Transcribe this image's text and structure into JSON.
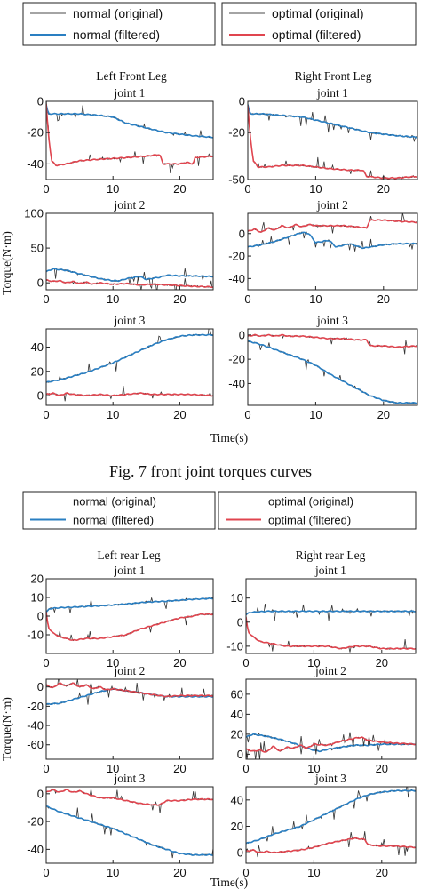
{
  "figures": [
    {
      "caption": "Fig. 7 front joint torques curves",
      "xlabel": "Time(s)",
      "ylabel": "Torque(N·m)",
      "legends": [
        [
          {
            "label": "normal (original)",
            "color": "#4a4a4a"
          },
          {
            "label": "normal (filtered)",
            "color": "#2a7fc2"
          }
        ],
        [
          {
            "label": "optimal (original)",
            "color": "#4a4a4a"
          },
          {
            "label": "optimal (filtered)",
            "color": "#e0454f"
          }
        ]
      ],
      "column_titles": [
        "Left Front Leg",
        "Right Front Leg"
      ]
    },
    {
      "caption": "",
      "xlabel": "Time(s)",
      "ylabel": "Torque(N·m)",
      "legends": [
        [
          {
            "label": "normal (original)",
            "color": "#4a4a4a"
          },
          {
            "label": "normal (filtered)",
            "color": "#2a7fc2"
          }
        ],
        [
          {
            "label": "optimal (original)",
            "color": "#4a4a4a"
          },
          {
            "label": "optimal (filtered)",
            "color": "#e0454f"
          }
        ]
      ],
      "column_titles": [
        "Left rear Leg",
        "Right rear Leg"
      ]
    }
  ],
  "chart_data": [
    {
      "type": "line",
      "title": "joint 1",
      "xlim": [
        0,
        25
      ],
      "ylim": [
        -50,
        0
      ],
      "xticks": [
        0,
        10,
        20
      ],
      "yticks": [
        0,
        -20,
        -40
      ],
      "series": [
        {
          "name": "normal (filtered)",
          "color": "#2a7fc2",
          "x": [
            0,
            0.3,
            2,
            5,
            8,
            10,
            12,
            14,
            16,
            18,
            20,
            22,
            25
          ],
          "y": [
            -2,
            -8,
            -8,
            -8,
            -9,
            -10,
            -14,
            -16,
            -18,
            -20,
            -21,
            -22,
            -23
          ]
        },
        {
          "name": "optimal (filtered)",
          "color": "#e0454f",
          "x": [
            0,
            0.3,
            0.8,
            1.5,
            3,
            5,
            8,
            12,
            15,
            17,
            17.5,
            20,
            21,
            22,
            22.3,
            25
          ],
          "y": [
            -2,
            -20,
            -38,
            -41,
            -40,
            -38,
            -37,
            -36,
            -35,
            -34,
            -40,
            -40,
            -39,
            -40,
            -36,
            -35
          ]
        }
      ]
    },
    {
      "type": "line",
      "title": "joint 1",
      "xlim": [
        0,
        25
      ],
      "ylim": [
        -50,
        0
      ],
      "xticks": [
        0,
        10,
        20
      ],
      "yticks": [
        0,
        -20,
        -50
      ],
      "series": [
        {
          "name": "normal (filtered)",
          "color": "#2a7fc2",
          "x": [
            0,
            0.3,
            2,
            5,
            8,
            10,
            12,
            14,
            16,
            18,
            20,
            22,
            25
          ],
          "y": [
            -2,
            -8,
            -8,
            -9,
            -10,
            -12,
            -14,
            -16,
            -18,
            -20,
            -21,
            -22,
            -23
          ]
        },
        {
          "name": "optimal (filtered)",
          "color": "#e0454f",
          "x": [
            0,
            0.3,
            0.8,
            1.5,
            3,
            5,
            8,
            10,
            12,
            15,
            17,
            17.5,
            20,
            22,
            25
          ],
          "y": [
            -3,
            -20,
            -38,
            -42,
            -42,
            -41,
            -41,
            -42,
            -43,
            -44,
            -44,
            -48,
            -49,
            -49,
            -48
          ]
        }
      ]
    },
    {
      "type": "line",
      "title": "joint 2",
      "xlim": [
        0,
        25
      ],
      "ylim": [
        -10,
        100
      ],
      "xticks": [
        0,
        10,
        20
      ],
      "yticks": [
        0,
        50,
        100
      ],
      "series": [
        {
          "name": "normal (filtered)",
          "color": "#2a7fc2",
          "x": [
            0,
            1,
            3,
            5,
            8,
            10,
            11,
            12,
            14,
            15,
            17,
            18,
            20,
            22,
            25
          ],
          "y": [
            16,
            20,
            18,
            13,
            6,
            3,
            3,
            6,
            9,
            5,
            8,
            11,
            10,
            10,
            9
          ]
        },
        {
          "name": "optimal (filtered)",
          "color": "#e0454f",
          "x": [
            0,
            1,
            2,
            3,
            4,
            5,
            6,
            7,
            8,
            10,
            12,
            14,
            16,
            18,
            20,
            22,
            25
          ],
          "y": [
            4,
            2,
            3,
            0,
            2,
            -1,
            1,
            -2,
            0,
            -2,
            -1,
            -3,
            -2,
            -3,
            -4,
            -5,
            -6
          ]
        }
      ]
    },
    {
      "type": "line",
      "title": "joint 2",
      "xlim": [
        0,
        25
      ],
      "ylim": [
        -50,
        18
      ],
      "xticks": [
        0,
        10,
        20
      ],
      "yticks": [
        0,
        -20,
        -40
      ],
      "series": [
        {
          "name": "normal (filtered)",
          "color": "#2a7fc2",
          "x": [
            0,
            2,
            4,
            6,
            8,
            9,
            10,
            12,
            13,
            15,
            17,
            18,
            20,
            22,
            25
          ],
          "y": [
            -12,
            -10,
            -7,
            -3,
            1,
            0,
            -8,
            -6,
            -12,
            -9,
            -13,
            -12,
            -10,
            -9,
            -9
          ]
        },
        {
          "name": "optimal (filtered)",
          "color": "#e0454f",
          "x": [
            0,
            1,
            2,
            3,
            4,
            5,
            6,
            7,
            8,
            9,
            10,
            12,
            14,
            16,
            17.5,
            18,
            20,
            22,
            25
          ],
          "y": [
            2,
            4,
            1,
            5,
            3,
            7,
            5,
            8,
            6,
            8,
            7,
            7,
            7,
            6,
            5,
            12,
            12,
            11,
            10
          ]
        }
      ]
    },
    {
      "type": "line",
      "title": "joint 3",
      "xlim": [
        0,
        25
      ],
      "ylim": [
        -8,
        55
      ],
      "xticks": [
        0,
        10,
        20
      ],
      "yticks": [
        0,
        20,
        40
      ],
      "series": [
        {
          "name": "normal (filtered)",
          "color": "#2a7fc2",
          "x": [
            0,
            2,
            4,
            6,
            8,
            10,
            12,
            14,
            16,
            18,
            20,
            22,
            25
          ],
          "y": [
            11,
            13,
            16,
            19,
            23,
            27,
            32,
            37,
            42,
            46,
            49,
            50,
            50
          ]
        },
        {
          "name": "optimal (filtered)",
          "color": "#e0454f",
          "x": [
            0,
            1,
            2,
            3,
            4,
            6,
            8,
            10,
            12,
            14,
            16,
            18,
            20,
            22,
            25
          ],
          "y": [
            1,
            2,
            0,
            2,
            1,
            0,
            1,
            0,
            1,
            2,
            1,
            1,
            1,
            1,
            0
          ]
        }
      ]
    },
    {
      "type": "line",
      "title": "joint 3",
      "xlim": [
        0,
        25
      ],
      "ylim": [
        -58,
        5
      ],
      "xticks": [
        0,
        10,
        20
      ],
      "yticks": [
        0,
        -20,
        -40
      ],
      "series": [
        {
          "name": "normal (filtered)",
          "color": "#2a7fc2",
          "x": [
            0,
            2,
            4,
            6,
            8,
            10,
            12,
            14,
            16,
            18,
            20,
            22,
            25
          ],
          "y": [
            -5,
            -8,
            -12,
            -16,
            -20,
            -25,
            -32,
            -38,
            -44,
            -50,
            -54,
            -56,
            -56
          ]
        },
        {
          "name": "optimal (filtered)",
          "color": "#e0454f",
          "x": [
            0,
            1,
            2,
            3,
            4,
            5,
            6,
            8,
            10,
            12,
            14,
            16,
            17.5,
            18,
            20,
            22,
            25
          ],
          "y": [
            -1,
            0,
            -1,
            0,
            -1,
            0,
            -1,
            -1,
            -2,
            -3,
            -3,
            -4,
            -4,
            -9,
            -9,
            -10,
            -9
          ]
        }
      ]
    },
    {
      "type": "line",
      "title": "joint 1",
      "xlim": [
        0,
        25
      ],
      "ylim": [
        -20,
        20
      ],
      "xticks": [
        0,
        10,
        20
      ],
      "yticks": [
        20,
        10,
        0,
        -10
      ],
      "series": [
        {
          "name": "normal (filtered)",
          "color": "#2a7fc2",
          "x": [
            0,
            0.5,
            2,
            5,
            8,
            10,
            12,
            15,
            18,
            20,
            22,
            25
          ],
          "y": [
            2,
            4,
            4.5,
            5,
            5.5,
            6,
            6.5,
            7.5,
            8,
            8.5,
            9,
            9.5
          ]
        },
        {
          "name": "optimal (filtered)",
          "color": "#e0454f",
          "x": [
            0,
            0.3,
            1,
            2,
            4,
            6,
            8,
            10,
            12,
            14,
            16,
            18,
            20,
            22,
            23,
            25
          ],
          "y": [
            2,
            -6,
            -9,
            -11,
            -13,
            -12,
            -12,
            -11,
            -10,
            -7,
            -5,
            -3,
            -1,
            0,
            1,
            1
          ]
        }
      ]
    },
    {
      "type": "line",
      "title": "joint 1",
      "xlim": [
        0,
        25
      ],
      "ylim": [
        -13,
        18
      ],
      "xticks": [
        0,
        10,
        20
      ],
      "yticks": [
        10,
        0,
        -10
      ],
      "series": [
        {
          "name": "normal (filtered)",
          "color": "#2a7fc2",
          "x": [
            0,
            0.5,
            3,
            6,
            10,
            14,
            18,
            22,
            25
          ],
          "y": [
            3,
            4,
            4.5,
            4.5,
            4.5,
            4.5,
            4.5,
            4.5,
            4.5
          ]
        },
        {
          "name": "optimal (filtered)",
          "color": "#e0454f",
          "x": [
            0,
            0.3,
            1,
            2,
            4,
            6,
            8,
            10,
            12,
            14,
            16,
            18,
            20,
            22,
            25
          ],
          "y": [
            2,
            -4,
            -6,
            -8,
            -9,
            -10,
            -10,
            -10,
            -10,
            -11,
            -10,
            -10,
            -11,
            -11,
            -11
          ]
        }
      ]
    },
    {
      "type": "line",
      "title": "joint 2",
      "xlim": [
        0,
        25
      ],
      "ylim": [
        -75,
        8
      ],
      "xticks": [
        0,
        10,
        20
      ],
      "yticks": [
        0,
        -20,
        -40,
        -60
      ],
      "series": [
        {
          "name": "normal (filtered)",
          "color": "#2a7fc2",
          "x": [
            0,
            2,
            4,
            6,
            8,
            10,
            12,
            14,
            16,
            18,
            20,
            22,
            25
          ],
          "y": [
            -18,
            -17,
            -13,
            -9,
            -5,
            -2,
            -4,
            -6,
            -8,
            -10,
            -10,
            -10,
            -10
          ]
        },
        {
          "name": "optimal (filtered)",
          "color": "#e0454f",
          "x": [
            0,
            1,
            2,
            3,
            4,
            5,
            6,
            7,
            8,
            9,
            10,
            12,
            14,
            16,
            18,
            20,
            22,
            25
          ],
          "y": [
            2,
            -1,
            4,
            1,
            4,
            0,
            2,
            -2,
            0,
            -3,
            -2,
            -4,
            -6,
            -8,
            -10,
            -9,
            -9,
            -9
          ]
        }
      ]
    },
    {
      "type": "line",
      "title": "joint 2",
      "xlim": [
        0,
        25
      ],
      "ylim": [
        -5,
        75
      ],
      "xticks": [
        0,
        10,
        20
      ],
      "yticks": [
        0,
        20,
        40,
        60
      ],
      "series": [
        {
          "name": "normal (filtered)",
          "color": "#2a7fc2",
          "x": [
            0,
            1,
            3,
            5,
            7,
            9,
            10,
            11,
            12,
            14,
            16,
            18,
            20,
            22,
            25
          ],
          "y": [
            17,
            20,
            18,
            15,
            11,
            6,
            4,
            3,
            5,
            7,
            9,
            9,
            10,
            10,
            10
          ]
        },
        {
          "name": "optimal (filtered)",
          "color": "#e0454f",
          "x": [
            0,
            1,
            2,
            3,
            4,
            5,
            6,
            7,
            8,
            9,
            10,
            12,
            14,
            16,
            17,
            18,
            20,
            22,
            25
          ],
          "y": [
            5,
            3,
            4,
            2,
            8,
            3,
            7,
            6,
            9,
            6,
            10,
            9,
            13,
            16,
            17,
            14,
            12,
            11,
            10
          ]
        }
      ]
    },
    {
      "type": "line",
      "title": "joint 3",
      "xlim": [
        0,
        25
      ],
      "ylim": [
        -50,
        5
      ],
      "xticks": [
        0,
        10,
        20
      ],
      "yticks": [
        0,
        -20,
        -40
      ],
      "series": [
        {
          "name": "normal (filtered)",
          "color": "#2a7fc2",
          "x": [
            0,
            2,
            4,
            6,
            8,
            10,
            12,
            14,
            16,
            18,
            20,
            22,
            25
          ],
          "y": [
            -9,
            -13,
            -16,
            -19,
            -22,
            -25,
            -29,
            -33,
            -37,
            -40,
            -43,
            -44,
            -44
          ]
        },
        {
          "name": "optimal (filtered)",
          "color": "#e0454f",
          "x": [
            0,
            1,
            2,
            3,
            4,
            5,
            6,
            8,
            10,
            12,
            14,
            16,
            17,
            18,
            20,
            22,
            25
          ],
          "y": [
            1,
            3,
            1,
            3,
            1,
            2,
            0,
            -3,
            -3,
            -5,
            -7,
            -8,
            -8,
            -5,
            -5,
            -4,
            -4
          ]
        }
      ]
    },
    {
      "type": "line",
      "title": "joint 3",
      "xlim": [
        0,
        25
      ],
      "ylim": [
        -8,
        50
      ],
      "xticks": [
        0,
        10,
        20
      ],
      "yticks": [
        0,
        20,
        40
      ],
      "series": [
        {
          "name": "normal (filtered)",
          "color": "#2a7fc2",
          "x": [
            0,
            2,
            4,
            6,
            8,
            10,
            12,
            14,
            16,
            18,
            20,
            22,
            25
          ],
          "y": [
            7,
            10,
            14,
            17,
            20,
            25,
            30,
            35,
            40,
            44,
            46,
            47,
            47
          ]
        },
        {
          "name": "optimal (filtered)",
          "color": "#e0454f",
          "x": [
            0,
            1,
            2,
            3,
            4,
            6,
            8,
            10,
            12,
            14,
            16,
            17.5,
            18,
            20,
            22,
            25
          ],
          "y": [
            1,
            2,
            0,
            1,
            0,
            1,
            2,
            4,
            7,
            9,
            11,
            10,
            6,
            5,
            5,
            4
          ]
        }
      ]
    }
  ]
}
